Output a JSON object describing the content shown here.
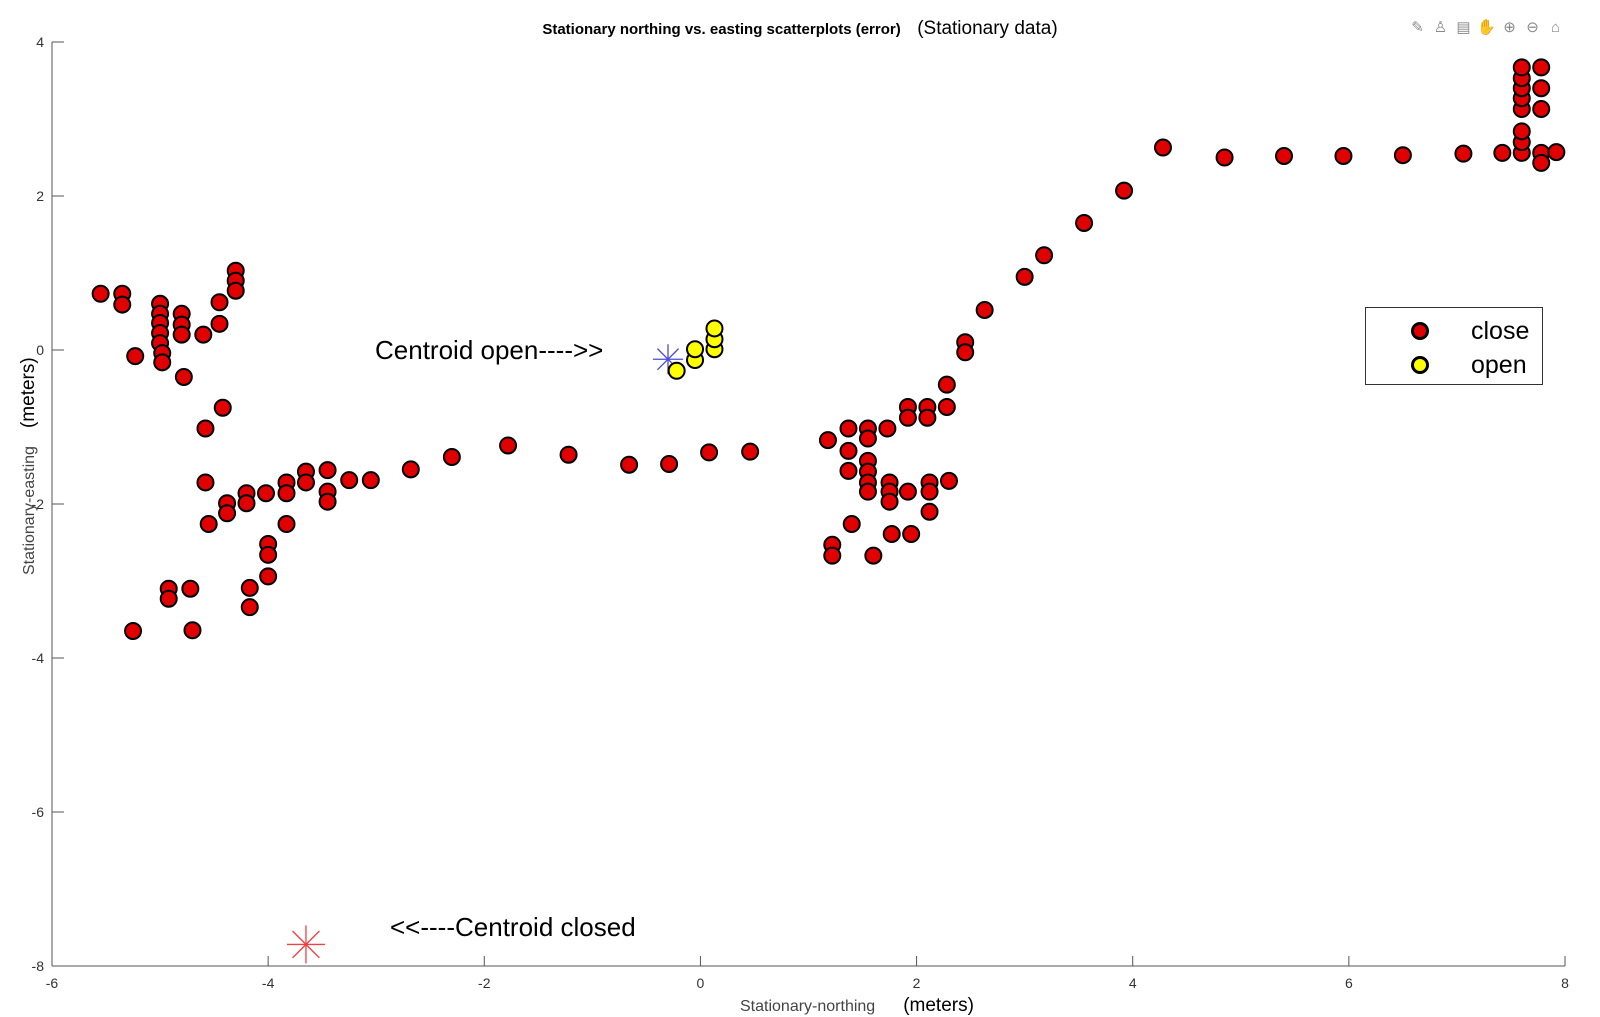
{
  "chart_data": {
    "type": "scatter",
    "title": "Stationary northing vs. easting scatterplots (error)",
    "subtitle": "(Stationary data)",
    "xlabel": "Stationary-northing",
    "xunit": "(meters)",
    "ylabel": "Stationary-easting",
    "yunit": "(meters)",
    "xlim": [
      -6,
      8
    ],
    "ylim": [
      -8,
      4
    ],
    "xticks": [
      -6,
      -4,
      -2,
      0,
      2,
      4,
      6,
      8
    ],
    "yticks": [
      -8,
      -6,
      -4,
      -2,
      0,
      2,
      4
    ],
    "grid": false,
    "legend_position": "right",
    "series": [
      {
        "name": "close",
        "color": "#e00000",
        "points": [
          [
            -5.55,
            0.73
          ],
          [
            -5.35,
            0.73
          ],
          [
            -5.35,
            0.59
          ],
          [
            -5.23,
            -0.08
          ],
          [
            -5.0,
            0.6
          ],
          [
            -5.0,
            0.47
          ],
          [
            -5.0,
            0.35
          ],
          [
            -5.0,
            0.22
          ],
          [
            -5.0,
            0.09
          ],
          [
            -4.98,
            -0.04
          ],
          [
            -4.98,
            -0.16
          ],
          [
            -4.8,
            0.47
          ],
          [
            -4.8,
            0.33
          ],
          [
            -4.8,
            0.2
          ],
          [
            -4.78,
            -0.35
          ],
          [
            -4.6,
            0.2
          ],
          [
            -4.45,
            0.62
          ],
          [
            -4.45,
            0.34
          ],
          [
            -4.3,
            1.03
          ],
          [
            -4.3,
            0.9
          ],
          [
            -4.3,
            0.77
          ],
          [
            -4.42,
            -0.75
          ],
          [
            -4.58,
            -1.02
          ],
          [
            -4.58,
            -1.72
          ],
          [
            -4.55,
            -2.26
          ],
          [
            -4.38,
            -1.99
          ],
          [
            -4.38,
            -2.12
          ],
          [
            -4.2,
            -1.86
          ],
          [
            -4.2,
            -1.99
          ],
          [
            -4.02,
            -1.86
          ],
          [
            -4.0,
            -2.52
          ],
          [
            -4.0,
            -2.66
          ],
          [
            -4.0,
            -2.94
          ],
          [
            -4.17,
            -3.09
          ],
          [
            -4.17,
            -3.34
          ],
          [
            -3.83,
            -1.72
          ],
          [
            -3.83,
            -1.86
          ],
          [
            -3.83,
            -2.26
          ],
          [
            -3.65,
            -1.58
          ],
          [
            -3.65,
            -1.72
          ],
          [
            -3.45,
            -1.56
          ],
          [
            -3.45,
            -1.84
          ],
          [
            -3.45,
            -1.97
          ],
          [
            -3.25,
            -1.69
          ],
          [
            -3.05,
            -1.69
          ],
          [
            -2.68,
            -1.55
          ],
          [
            -2.3,
            -1.39
          ],
          [
            -1.78,
            -1.24
          ],
          [
            -1.22,
            -1.36
          ],
          [
            -0.66,
            -1.49
          ],
          [
            -0.29,
            -1.48
          ],
          [
            0.08,
            -1.33
          ],
          [
            0.46,
            -1.32
          ],
          [
            -5.25,
            -3.65
          ],
          [
            -4.92,
            -3.1
          ],
          [
            -4.92,
            -3.23
          ],
          [
            -4.72,
            -3.1
          ],
          [
            -4.7,
            -3.64
          ],
          [
            1.18,
            -1.17
          ],
          [
            1.37,
            -1.02
          ],
          [
            1.37,
            -1.31
          ],
          [
            1.37,
            -1.57
          ],
          [
            1.55,
            -1.02
          ],
          [
            1.55,
            -1.15
          ],
          [
            1.55,
            -1.44
          ],
          [
            1.55,
            -1.58
          ],
          [
            1.55,
            -1.72
          ],
          [
            1.55,
            -1.84
          ],
          [
            1.73,
            -1.02
          ],
          [
            1.75,
            -1.72
          ],
          [
            1.75,
            -1.84
          ],
          [
            1.75,
            -1.97
          ],
          [
            1.92,
            -0.74
          ],
          [
            1.92,
            -0.88
          ],
          [
            1.92,
            -1.84
          ],
          [
            2.1,
            -0.74
          ],
          [
            2.1,
            -0.88
          ],
          [
            2.12,
            -1.72
          ],
          [
            2.12,
            -1.84
          ],
          [
            2.12,
            -2.1
          ],
          [
            2.28,
            -0.45
          ],
          [
            2.28,
            -0.74
          ],
          [
            2.3,
            -1.7
          ],
          [
            1.22,
            -2.53
          ],
          [
            1.22,
            -2.67
          ],
          [
            1.4,
            -2.26
          ],
          [
            1.6,
            -2.67
          ],
          [
            1.77,
            -2.39
          ],
          [
            1.95,
            -2.39
          ],
          [
            2.45,
            0.1
          ],
          [
            2.45,
            -0.03
          ],
          [
            2.63,
            0.52
          ],
          [
            3.0,
            0.95
          ],
          [
            3.18,
            1.23
          ],
          [
            3.55,
            1.65
          ],
          [
            3.92,
            2.07
          ],
          [
            4.28,
            2.63
          ],
          [
            4.85,
            2.5
          ],
          [
            5.4,
            2.52
          ],
          [
            5.95,
            2.52
          ],
          [
            6.5,
            2.53
          ],
          [
            7.06,
            2.55
          ],
          [
            7.42,
            2.56
          ],
          [
            7.6,
            2.56
          ],
          [
            7.6,
            2.7
          ],
          [
            7.6,
            2.84
          ],
          [
            7.6,
            3.13
          ],
          [
            7.6,
            3.27
          ],
          [
            7.6,
            3.4
          ],
          [
            7.6,
            3.53
          ],
          [
            7.6,
            3.67
          ],
          [
            7.78,
            3.67
          ],
          [
            7.78,
            3.4
          ],
          [
            7.78,
            3.13
          ],
          [
            7.78,
            2.56
          ],
          [
            7.78,
            2.43
          ],
          [
            7.92,
            2.57
          ]
        ]
      },
      {
        "name": "open",
        "color": "#ffff00",
        "points": [
          [
            -0.22,
            -0.27
          ],
          [
            -0.05,
            -0.13
          ],
          [
            -0.05,
            0.01
          ],
          [
            0.13,
            0.01
          ],
          [
            0.13,
            0.14
          ],
          [
            0.13,
            0.28
          ]
        ]
      }
    ],
    "centroids": [
      {
        "name": "centroid-open",
        "color": "#4a4ae0",
        "x": -0.3,
        "y": -0.12
      },
      {
        "name": "centroid-closed",
        "color": "#f04040",
        "x": -3.65,
        "y": -7.72
      }
    ],
    "annotations": [
      {
        "name": "centroid-open-annotation",
        "text": "Centroid open---->>"
      },
      {
        "name": "centroid-closed-annotation",
        "text": "<<----Centroid closed"
      }
    ]
  }
}
